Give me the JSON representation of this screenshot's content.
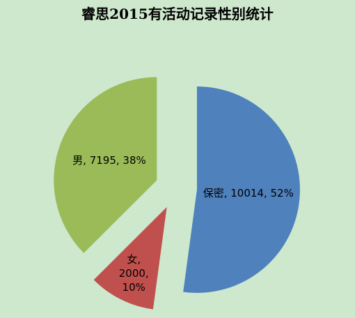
{
  "chart_data": {
    "type": "pie",
    "title": "睿思2015有活动记录性别统计",
    "categories": [
      "保密",
      "女",
      "男"
    ],
    "values": [
      10014,
      2000,
      7195
    ],
    "value_labels": [
      "保密, 10014, 52%",
      "女,\n2000,\n10%",
      "男, 7195, 38%"
    ],
    "colors": [
      "#4f81bd",
      "#c0504d",
      "#9bbb59"
    ]
  }
}
